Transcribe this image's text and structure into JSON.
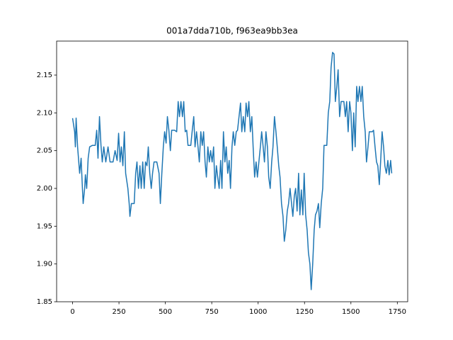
{
  "chart_data": {
    "type": "line",
    "title": "001a7dda710b, f963ea9bb3ea",
    "x": [
      0,
      11,
      15,
      19,
      27,
      38,
      46,
      53,
      57,
      65,
      69,
      76,
      84,
      92,
      107,
      122,
      130,
      137,
      145,
      153,
      160,
      168,
      179,
      191,
      202,
      218,
      229,
      240,
      248,
      256,
      263,
      271,
      279,
      286,
      298,
      305,
      309,
      317,
      332,
      340,
      347,
      355,
      363,
      370,
      378,
      386,
      393,
      401,
      408,
      416,
      424,
      431,
      439,
      454,
      466,
      473,
      481,
      489,
      496,
      504,
      511,
      519,
      527,
      534,
      550,
      561,
      569,
      576,
      584,
      592,
      599,
      607,
      615,
      622,
      637,
      645,
      653,
      660,
      668,
      676,
      683,
      691,
      699,
      706,
      714,
      721,
      729,
      737,
      744,
      752,
      760,
      767,
      775,
      782,
      790,
      798,
      805,
      813,
      821,
      828,
      836,
      844,
      851,
      859,
      866,
      874,
      882,
      889,
      897,
      905,
      912,
      920,
      928,
      935,
      943,
      950,
      958,
      966,
      973,
      981,
      989,
      996,
      1004,
      1012,
      1019,
      1027,
      1034,
      1042,
      1050,
      1057,
      1065,
      1073,
      1080,
      1088,
      1096,
      1103,
      1111,
      1118,
      1126,
      1134,
      1141,
      1149,
      1157,
      1164,
      1172,
      1180,
      1187,
      1195,
      1202,
      1210,
      1218,
      1225,
      1233,
      1241,
      1248,
      1256,
      1264,
      1271,
      1279,
      1286,
      1294,
      1302,
      1309,
      1317,
      1325,
      1332,
      1340,
      1348,
      1355,
      1370,
      1378,
      1386,
      1393,
      1401,
      1409,
      1416,
      1424,
      1431,
      1439,
      1447,
      1462,
      1470,
      1477,
      1485,
      1493,
      1500,
      1508,
      1515,
      1523,
      1531,
      1538,
      1546,
      1554,
      1561,
      1569,
      1577,
      1584,
      1592,
      1599,
      1615,
      1622,
      1630,
      1638,
      1645,
      1653,
      1660,
      1668,
      1676,
      1683,
      1691,
      1699,
      1706,
      1714,
      1720
    ],
    "series": [
      {
        "color": "#1f77b4",
        "values": [
          2.093,
          2.075,
          2.055,
          2.093,
          2.055,
          2.02,
          2.04,
          2.0,
          1.98,
          2.0,
          2.018,
          2.0,
          2.04,
          2.055,
          2.057,
          2.057,
          2.077,
          2.04,
          2.095,
          2.057,
          2.035,
          2.055,
          2.035,
          2.055,
          2.035,
          2.035,
          2.05,
          2.037,
          2.073,
          2.035,
          2.055,
          2.03,
          2.075,
          2.02,
          2.0,
          1.98,
          1.963,
          1.98,
          1.98,
          2.02,
          2.035,
          2.0,
          2.03,
          2.0,
          2.035,
          2.0,
          2.035,
          2.03,
          2.055,
          2.02,
          2.0,
          2.02,
          2.035,
          2.035,
          2.02,
          1.98,
          2.02,
          2.055,
          2.075,
          2.06,
          2.095,
          2.077,
          2.05,
          2.077,
          2.077,
          2.075,
          2.115,
          2.095,
          2.115,
          2.095,
          2.115,
          2.075,
          2.077,
          2.057,
          2.057,
          2.077,
          2.095,
          2.055,
          2.075,
          2.055,
          2.035,
          2.075,
          2.057,
          2.075,
          2.035,
          2.015,
          2.055,
          2.035,
          2.05,
          2.035,
          2.055,
          2.0,
          2.03,
          2.015,
          2.0,
          2.037,
          2.0,
          2.075,
          2.035,
          2.055,
          2.02,
          2.037,
          2.0,
          2.055,
          2.075,
          2.057,
          2.075,
          2.077,
          2.095,
          2.113,
          2.075,
          2.095,
          2.075,
          2.113,
          2.095,
          2.115,
          2.075,
          2.095,
          2.055,
          2.015,
          2.035,
          2.015,
          2.035,
          2.055,
          2.075,
          2.055,
          2.035,
          2.075,
          2.055,
          2.015,
          2.0,
          2.035,
          2.055,
          2.095,
          2.075,
          2.055,
          2.03,
          2.015,
          1.98,
          1.963,
          1.93,
          1.945,
          1.97,
          1.98,
          2.0,
          1.98,
          1.963,
          1.99,
          2.0,
          1.97,
          2.02,
          1.965,
          1.998,
          1.965,
          2.02,
          1.965,
          1.945,
          1.915,
          1.9,
          1.866,
          1.9,
          1.945,
          1.965,
          1.97,
          1.98,
          1.948,
          1.98,
          2.0,
          2.057,
          2.057,
          2.1,
          2.115,
          2.16,
          2.18,
          2.178,
          2.115,
          2.135,
          2.157,
          2.095,
          2.115,
          2.115,
          2.095,
          2.115,
          2.075,
          2.115,
          2.1,
          2.05,
          2.1,
          2.055,
          2.135,
          2.115,
          2.135,
          2.115,
          2.135,
          2.095,
          2.075,
          2.035,
          2.055,
          2.075,
          2.075,
          2.077,
          2.055,
          2.035,
          2.03,
          2.005,
          2.035,
          2.075,
          2.055,
          2.03,
          2.02,
          2.037,
          2.018,
          2.037,
          2.02
        ]
      }
    ],
    "xlim": [
      -86,
      1806
    ],
    "xticks": [
      0,
      250,
      500,
      750,
      1000,
      1250,
      1500,
      1750
    ],
    "ylim": [
      1.85,
      2.195
    ],
    "yticks": [
      1.85,
      {
        "value": 1.9,
        "label": "1.90"
      },
      1.95,
      {
        "value": 2.0,
        "label": "2.00"
      },
      2.05,
      {
        "value": 2.1,
        "label": "2.10"
      },
      2.15
    ]
  }
}
